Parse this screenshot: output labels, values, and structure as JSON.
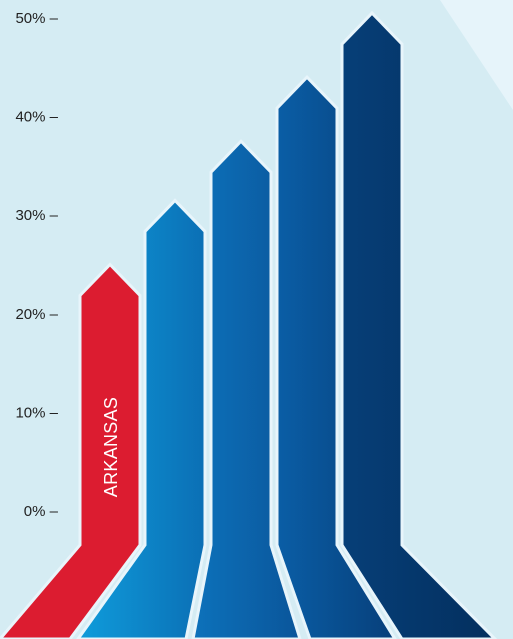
{
  "chart_data": {
    "type": "bar",
    "title": "",
    "xlabel": "",
    "ylabel": "",
    "ylim": [
      0,
      50
    ],
    "yticks": [
      {
        "value": 0,
        "label": "0% –"
      },
      {
        "value": 10,
        "label": "10% –"
      },
      {
        "value": 20,
        "label": "20% –"
      },
      {
        "value": 30,
        "label": "30% –"
      },
      {
        "value": 40,
        "label": "40% –"
      },
      {
        "value": 50,
        "label": "50% –"
      }
    ],
    "grid": false,
    "legend": "none",
    "categories": [
      "ARKANSAS",
      "",
      "",
      "",
      ""
    ],
    "values": [
      25,
      31.5,
      37.5,
      44,
      50.5
    ],
    "colors": [
      "#dc1c30",
      "#1a9ad6",
      "#0a66b0",
      "#0a4f90",
      "#06376a"
    ],
    "background_color": "#d5ecf3",
    "highlight": "ARKANSAS"
  }
}
